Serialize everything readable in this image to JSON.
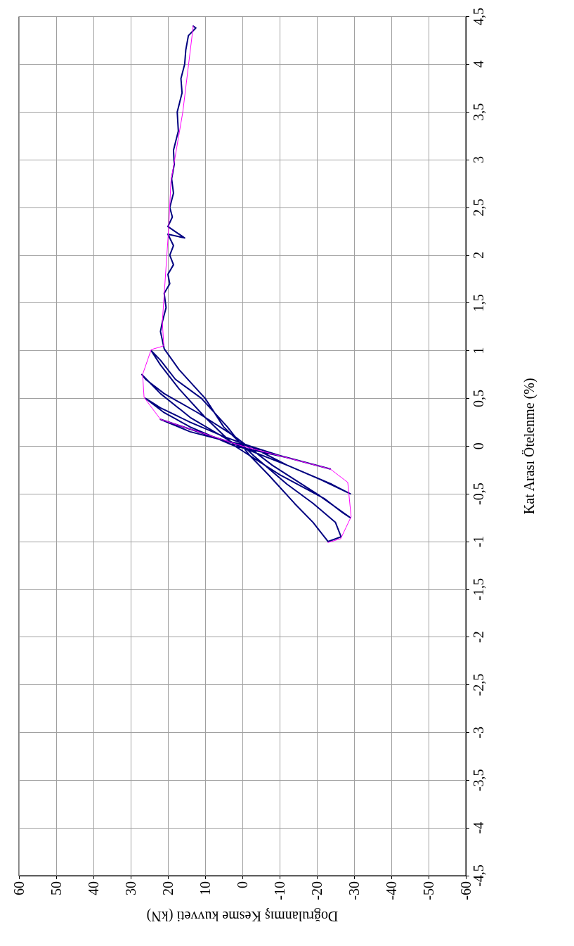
{
  "chart_data": {
    "type": "line",
    "xlabel": "Doğrulanmış Kesme kuvveti (kN)",
    "ylabel": "Kat Arası Ötelenme (%)",
    "xlim": [
      60,
      -60
    ],
    "xticks": [
      60,
      50,
      40,
      30,
      20,
      10,
      0,
      -10,
      -20,
      -30,
      -40,
      -50,
      -60
    ],
    "ylim": [
      -4.5,
      4.5
    ],
    "yticks": [
      {
        "value": -4.5,
        "label": "-4,5"
      },
      -4,
      {
        "value": -3.5,
        "label": "-3,5"
      },
      -3,
      {
        "value": -2.5,
        "label": "-2,5"
      },
      -2,
      {
        "value": -1.5,
        "label": "-1,5"
      },
      -1,
      {
        "value": -0.5,
        "label": "-0,5"
      },
      0,
      {
        "value": 0.5,
        "label": "0,5"
      },
      1,
      {
        "value": 1.5,
        "label": "1,5"
      },
      2,
      {
        "value": 2.5,
        "label": "2,5"
      },
      3,
      {
        "value": 3.5,
        "label": "3,5"
      },
      4,
      {
        "value": 4.5,
        "label": "4,5"
      }
    ],
    "grid": true,
    "marker": "none",
    "line_style": "solid",
    "series": [
      {
        "color": "#000080",
        "values": [
          0,
          0.1,
          0.28,
          0.15,
          0.05,
          0,
          -0.1,
          -0.24,
          -0.12,
          0,
          0.2,
          0.35,
          0.5,
          0.4,
          0.25,
          0.1,
          0,
          -0.2,
          -0.35,
          -0.5,
          -0.4,
          -0.2,
          0,
          0.3,
          0.55,
          0.75,
          0.7,
          0.55,
          0.35,
          0.1,
          -0.2,
          -0.5,
          -0.75,
          -0.7,
          -0.55,
          -0.3,
          0,
          0.3,
          0.6,
          0.85,
          1.0,
          0.9,
          0.7,
          0.5,
          0.2,
          -0.1,
          -0.3,
          -0.6,
          -0.8,
          -1.0,
          -0.95,
          -0.8,
          -0.6,
          -0.4,
          -0.1,
          0.2,
          0.5,
          0.8,
          1.02,
          1.2,
          1.3,
          1.45,
          1.6,
          1.7,
          1.8,
          1.9,
          2.0,
          2.1,
          2.22,
          2.18,
          2.3,
          2.4,
          2.5,
          2.65,
          2.8,
          2.95,
          3.1,
          3.3,
          3.5,
          3.7,
          3.85,
          4.0,
          4.15,
          4.3,
          4.38,
          4.4
        ],
        "x": [
          0,
          8,
          22,
          14,
          4,
          -2,
          -10,
          -23.6,
          -12,
          2,
          14,
          21,
          26,
          22,
          14,
          5,
          -2,
          -12,
          -21,
          -29,
          -24,
          -12,
          1,
          14,
          22,
          27,
          26,
          21,
          12,
          2,
          -8,
          -20,
          -29,
          -27,
          -22,
          -10,
          2,
          10,
          17,
          22,
          24.5,
          22,
          18,
          11,
          4,
          -2,
          -7,
          -14,
          -19,
          -23,
          -26.5,
          -25,
          -19,
          -12,
          -3,
          5,
          10,
          17,
          21,
          22,
          21.5,
          20.5,
          21,
          19.5,
          20,
          18.5,
          19.5,
          18.5,
          20,
          15.5,
          20,
          18.8,
          19.5,
          18.5,
          19,
          18.3,
          18.5,
          17.2,
          17.5,
          16.2,
          16.5,
          15.5,
          15.2,
          14.5,
          12.5,
          13.2
        ]
      },
      {
        "color": "#ff00ff",
        "values": [
          -1.01,
          -0.97,
          -0.74,
          -0.38,
          -0.24,
          0,
          0.28,
          0.51,
          0.75,
          1.01,
          1.05,
          1.3,
          2.28,
          2.77,
          3.5,
          4.4
        ],
        "x": [
          -23,
          -26.4,
          -29.2,
          -28.3,
          -23.6,
          0,
          22,
          26.4,
          26.8,
          24.5,
          21.1,
          21.5,
          19.8,
          19.2,
          16,
          13.2
        ]
      }
    ]
  }
}
